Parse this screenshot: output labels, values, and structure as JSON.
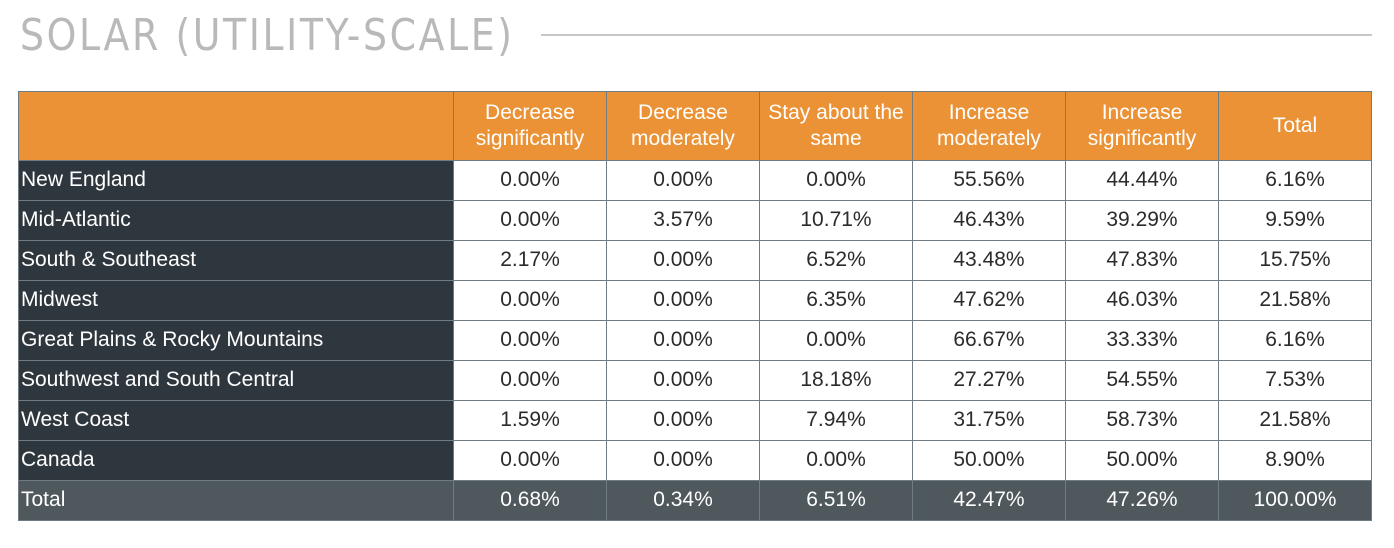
{
  "title": "SOLAR (UTILITY-SCALE)",
  "chart_data": {
    "type": "table",
    "title": "SOLAR (UTILITY-SCALE)",
    "columns": [
      "Decrease significantly",
      "Decrease moderately",
      "Stay about the same",
      "Increase moderately",
      "Increase significantly",
      "Total"
    ],
    "rows": [
      {
        "label": "New England",
        "values": [
          "0.00%",
          "0.00%",
          "0.00%",
          "55.56%",
          "44.44%",
          "6.16%"
        ]
      },
      {
        "label": "Mid-Atlantic",
        "values": [
          "0.00%",
          "3.57%",
          "10.71%",
          "46.43%",
          "39.29%",
          "9.59%"
        ]
      },
      {
        "label": "South & Southeast",
        "values": [
          "2.17%",
          "0.00%",
          "6.52%",
          "43.48%",
          "47.83%",
          "15.75%"
        ]
      },
      {
        "label": "Midwest",
        "values": [
          "0.00%",
          "0.00%",
          "6.35%",
          "47.62%",
          "46.03%",
          "21.58%"
        ]
      },
      {
        "label": "Great Plains & Rocky Mountains",
        "values": [
          "0.00%",
          "0.00%",
          "0.00%",
          "66.67%",
          "33.33%",
          "6.16%"
        ]
      },
      {
        "label": "Southwest and South Central",
        "values": [
          "0.00%",
          "0.00%",
          "18.18%",
          "27.27%",
          "54.55%",
          "7.53%"
        ]
      },
      {
        "label": "West Coast",
        "values": [
          "1.59%",
          "0.00%",
          "7.94%",
          "31.75%",
          "58.73%",
          "21.58%"
        ]
      },
      {
        "label": "Canada",
        "values": [
          "0.00%",
          "0.00%",
          "0.00%",
          "50.00%",
          "50.00%",
          "8.90%"
        ]
      }
    ],
    "total_row": {
      "label": "Total",
      "values": [
        "0.68%",
        "0.34%",
        "6.51%",
        "42.47%",
        "47.26%",
        "100.00%"
      ]
    }
  },
  "colors": {
    "header_bg": "#ea9235",
    "row_label_bg": "#2f373e",
    "total_row_bg": "#4e585d",
    "title_text": "#b9b9b9"
  }
}
